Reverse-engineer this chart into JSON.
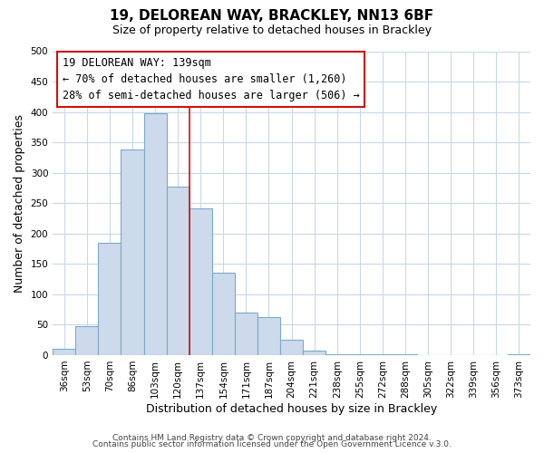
{
  "title": "19, DELOREAN WAY, BRACKLEY, NN13 6BF",
  "subtitle": "Size of property relative to detached houses in Brackley",
  "xlabel": "Distribution of detached houses by size in Brackley",
  "ylabel": "Number of detached properties",
  "bar_color": "#ccdaeb",
  "bar_edge_color": "#7aaaca",
  "categories": [
    "36sqm",
    "53sqm",
    "70sqm",
    "86sqm",
    "103sqm",
    "120sqm",
    "137sqm",
    "154sqm",
    "171sqm",
    "187sqm",
    "204sqm",
    "221sqm",
    "238sqm",
    "255sqm",
    "272sqm",
    "288sqm",
    "305sqm",
    "322sqm",
    "339sqm",
    "356sqm",
    "373sqm"
  ],
  "values": [
    10,
    47,
    185,
    338,
    398,
    277,
    241,
    136,
    70,
    62,
    25,
    8,
    2,
    1,
    1,
    1,
    0,
    0,
    0,
    0,
    2
  ],
  "ylim": [
    0,
    500
  ],
  "yticks": [
    0,
    50,
    100,
    150,
    200,
    250,
    300,
    350,
    400,
    450,
    500
  ],
  "annotation_title": "19 DELOREAN WAY: 139sqm",
  "annotation_line1": "← 70% of detached houses are smaller (1,260)",
  "annotation_line2": "28% of semi-detached houses are larger (506) →",
  "vline_x_idx": 5.5,
  "footer1": "Contains HM Land Registry data © Crown copyright and database right 2024.",
  "footer2": "Contains public sector information licensed under the Open Government Licence v.3.0.",
  "background_color": "#ffffff",
  "grid_color": "#c8d8e8",
  "title_fontsize": 11,
  "subtitle_fontsize": 9,
  "axis_label_fontsize": 9,
  "tick_fontsize": 7.5,
  "annotation_fontsize": 8.5,
  "footer_fontsize": 6.5
}
